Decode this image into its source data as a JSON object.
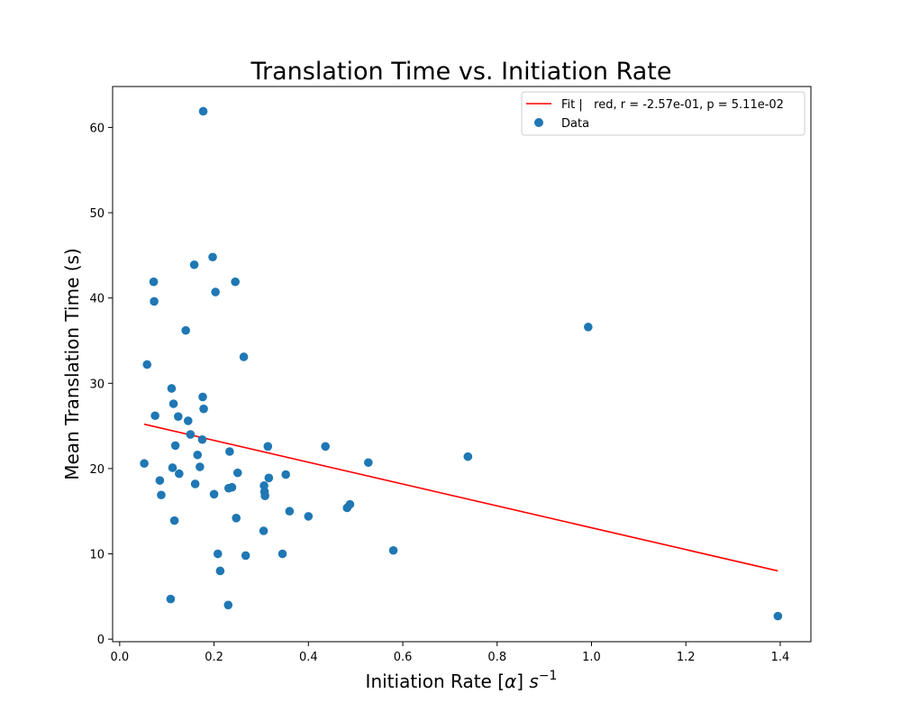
{
  "chart_data": {
    "type": "scatter",
    "title": "Translation Time vs. Initiation Rate",
    "xlabel_main": "Initiation Rate [",
    "xlabel_alpha": "α",
    "xlabel_close": "] ",
    "xlabel_unit": "s",
    "xlabel_exp": "−1",
    "ylabel": "Mean Translation Time (s)",
    "xlim": [
      -0.015,
      1.465
    ],
    "ylim": [
      -0.3,
      64.8
    ],
    "xticks": [
      0.0,
      0.2,
      0.4,
      0.6,
      0.8,
      1.0,
      1.2,
      1.4
    ],
    "xtick_labels": [
      "0.0",
      "0.2",
      "0.4",
      "0.6",
      "0.8",
      "1.0",
      "1.2",
      "1.4"
    ],
    "yticks": [
      0,
      10,
      20,
      30,
      40,
      50,
      60
    ],
    "ytick_labels": [
      "0",
      "10",
      "20",
      "30",
      "40",
      "50",
      "60"
    ],
    "grid": false,
    "legend": {
      "placement": "top-right",
      "fit_label": "Fit |   red, r = -2.57e-01, p = 5.11e-02",
      "data_label": "Data"
    },
    "colors": {
      "fit": "#ff0000",
      "data": "#1f77b4"
    },
    "fit": {
      "x": [
        0.052,
        1.395
      ],
      "y": [
        25.2,
        8.0
      ]
    },
    "points": [
      {
        "x": 0.052,
        "y": 20.6
      },
      {
        "x": 0.058,
        "y": 32.2
      },
      {
        "x": 0.072,
        "y": 41.9
      },
      {
        "x": 0.073,
        "y": 39.6
      },
      {
        "x": 0.075,
        "y": 26.2
      },
      {
        "x": 0.085,
        "y": 18.6
      },
      {
        "x": 0.088,
        "y": 16.9
      },
      {
        "x": 0.108,
        "y": 4.7
      },
      {
        "x": 0.11,
        "y": 29.4
      },
      {
        "x": 0.112,
        "y": 20.1
      },
      {
        "x": 0.114,
        "y": 27.6
      },
      {
        "x": 0.116,
        "y": 13.9
      },
      {
        "x": 0.118,
        "y": 22.7
      },
      {
        "x": 0.124,
        "y": 26.1
      },
      {
        "x": 0.126,
        "y": 19.4
      },
      {
        "x": 0.14,
        "y": 36.2
      },
      {
        "x": 0.145,
        "y": 25.6
      },
      {
        "x": 0.15,
        "y": 24.0
      },
      {
        "x": 0.158,
        "y": 43.9
      },
      {
        "x": 0.16,
        "y": 18.2
      },
      {
        "x": 0.165,
        "y": 21.6
      },
      {
        "x": 0.17,
        "y": 20.2
      },
      {
        "x": 0.175,
        "y": 23.4
      },
      {
        "x": 0.176,
        "y": 28.4
      },
      {
        "x": 0.177,
        "y": 61.9
      },
      {
        "x": 0.178,
        "y": 27.0
      },
      {
        "x": 0.197,
        "y": 44.8
      },
      {
        "x": 0.2,
        "y": 17.0
      },
      {
        "x": 0.203,
        "y": 40.7
      },
      {
        "x": 0.208,
        "y": 10.0
      },
      {
        "x": 0.213,
        "y": 8.0
      },
      {
        "x": 0.23,
        "y": 4.0
      },
      {
        "x": 0.231,
        "y": 17.7
      },
      {
        "x": 0.233,
        "y": 22.0
      },
      {
        "x": 0.238,
        "y": 17.8
      },
      {
        "x": 0.245,
        "y": 41.9
      },
      {
        "x": 0.247,
        "y": 14.2
      },
      {
        "x": 0.25,
        "y": 19.5
      },
      {
        "x": 0.263,
        "y": 33.1
      },
      {
        "x": 0.267,
        "y": 9.8
      },
      {
        "x": 0.305,
        "y": 12.7
      },
      {
        "x": 0.306,
        "y": 18.0
      },
      {
        "x": 0.307,
        "y": 17.3
      },
      {
        "x": 0.308,
        "y": 16.8
      },
      {
        "x": 0.314,
        "y": 22.6
      },
      {
        "x": 0.316,
        "y": 18.9
      },
      {
        "x": 0.345,
        "y": 10.0
      },
      {
        "x": 0.352,
        "y": 19.3
      },
      {
        "x": 0.36,
        "y": 15.0
      },
      {
        "x": 0.4,
        "y": 14.4
      },
      {
        "x": 0.436,
        "y": 22.6
      },
      {
        "x": 0.482,
        "y": 15.4
      },
      {
        "x": 0.488,
        "y": 15.8
      },
      {
        "x": 0.527,
        "y": 20.7
      },
      {
        "x": 0.58,
        "y": 10.4
      },
      {
        "x": 0.738,
        "y": 21.4
      },
      {
        "x": 0.993,
        "y": 36.6
      },
      {
        "x": 1.395,
        "y": 2.7
      }
    ]
  }
}
